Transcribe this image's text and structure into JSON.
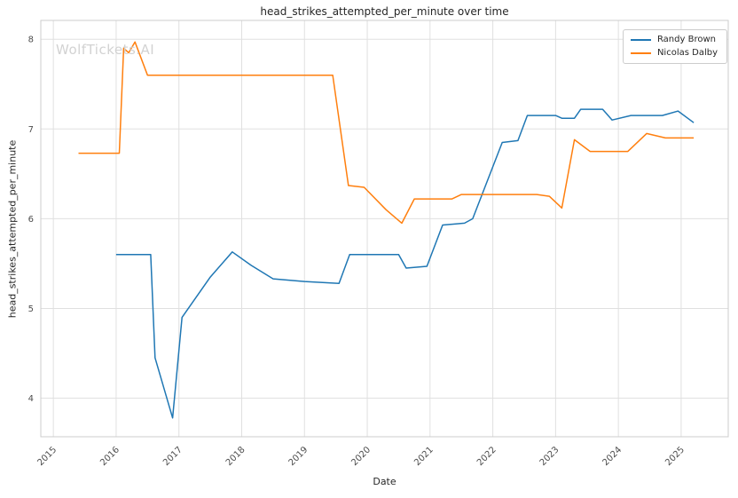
{
  "watermark": "WolfTickets.AI",
  "chart_data": {
    "type": "line",
    "title": "head_strikes_attempted_per_minute over time",
    "xlabel": "Date",
    "ylabel": "head_strikes_attempted_per_minute",
    "xlim": [
      2014.8,
      2025.75
    ],
    "ylim": [
      3.57,
      8.21
    ],
    "x_ticks": [
      2015,
      2016,
      2017,
      2018,
      2019,
      2020,
      2021,
      2022,
      2023,
      2024,
      2025
    ],
    "y_ticks": [
      4,
      5,
      6,
      7,
      8
    ],
    "grid": true,
    "legend_position": "upper right",
    "series": [
      {
        "name": "Randy Brown",
        "color": "#1f77b4",
        "points": [
          [
            2016.0,
            5.6
          ],
          [
            2016.55,
            5.6
          ],
          [
            2016.62,
            4.45
          ],
          [
            2016.9,
            3.78
          ],
          [
            2017.05,
            4.9
          ],
          [
            2017.5,
            5.35
          ],
          [
            2017.85,
            5.63
          ],
          [
            2018.15,
            5.48
          ],
          [
            2018.5,
            5.33
          ],
          [
            2019.0,
            5.3
          ],
          [
            2019.55,
            5.28
          ],
          [
            2019.72,
            5.6
          ],
          [
            2020.1,
            5.6
          ],
          [
            2020.5,
            5.6
          ],
          [
            2020.62,
            5.45
          ],
          [
            2020.95,
            5.47
          ],
          [
            2021.2,
            5.93
          ],
          [
            2021.55,
            5.95
          ],
          [
            2021.68,
            6.0
          ],
          [
            2022.15,
            6.85
          ],
          [
            2022.4,
            6.87
          ],
          [
            2022.55,
            7.15
          ],
          [
            2023.0,
            7.15
          ],
          [
            2023.1,
            7.12
          ],
          [
            2023.3,
            7.12
          ],
          [
            2023.4,
            7.22
          ],
          [
            2023.75,
            7.22
          ],
          [
            2023.9,
            7.1
          ],
          [
            2024.2,
            7.15
          ],
          [
            2024.7,
            7.15
          ],
          [
            2024.95,
            7.2
          ],
          [
            2025.2,
            7.07
          ]
        ]
      },
      {
        "name": "Nicolas Dalby",
        "color": "#ff7f0e",
        "points": [
          [
            2015.4,
            6.73
          ],
          [
            2016.05,
            6.73
          ],
          [
            2016.12,
            7.9
          ],
          [
            2016.2,
            7.85
          ],
          [
            2016.3,
            7.97
          ],
          [
            2016.5,
            7.6
          ],
          [
            2017.5,
            7.6
          ],
          [
            2018.5,
            7.6
          ],
          [
            2019.45,
            7.6
          ],
          [
            2019.7,
            6.37
          ],
          [
            2019.95,
            6.35
          ],
          [
            2020.3,
            6.1
          ],
          [
            2020.55,
            5.95
          ],
          [
            2020.75,
            6.22
          ],
          [
            2021.35,
            6.22
          ],
          [
            2021.5,
            6.27
          ],
          [
            2022.0,
            6.27
          ],
          [
            2022.7,
            6.27
          ],
          [
            2022.9,
            6.25
          ],
          [
            2023.1,
            6.12
          ],
          [
            2023.3,
            6.88
          ],
          [
            2023.55,
            6.75
          ],
          [
            2024.15,
            6.75
          ],
          [
            2024.45,
            6.95
          ],
          [
            2024.75,
            6.9
          ],
          [
            2025.2,
            6.9
          ]
        ]
      }
    ]
  }
}
